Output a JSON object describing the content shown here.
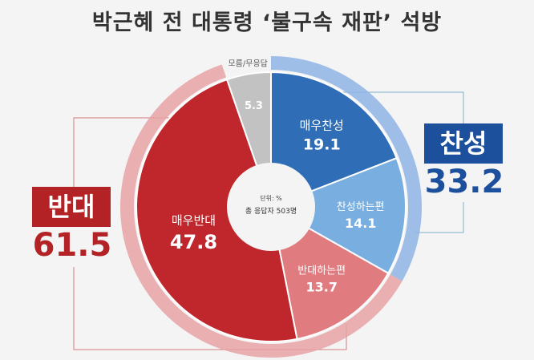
{
  "title": "박근혜 전 대통령 ‘불구속 재판’ 석방",
  "center": {
    "unit": "단위: %",
    "sample": "총 응답자 503명"
  },
  "groups": {
    "oppose": {
      "label": "반대",
      "total": "61.5",
      "color": "#b32224"
    },
    "support": {
      "label": "찬성",
      "total": "33.2",
      "color": "#1c4f9c"
    }
  },
  "chart_data": {
    "type": "pie",
    "subtype": "donut",
    "order": "clockwise from top",
    "slices": [
      {
        "label": "매우찬성",
        "value": 19.1,
        "color": "#2f6eb6"
      },
      {
        "label": "찬성하는편",
        "value": 14.1,
        "color": "#79aee0"
      },
      {
        "label": "반대하는편",
        "value": 13.7,
        "color": "#e07b80"
      },
      {
        "label": "매우반대",
        "value": 47.8,
        "color": "#c0272d"
      },
      {
        "label": "모름/무응답",
        "value": 5.3,
        "color": "#c2c2c2"
      }
    ],
    "outer_groups": [
      {
        "label": "찬성",
        "value": 33.2,
        "color": "#8fb4e4"
      },
      {
        "label": "반대",
        "value": 61.5,
        "color": "#e6a2a5"
      }
    ]
  }
}
